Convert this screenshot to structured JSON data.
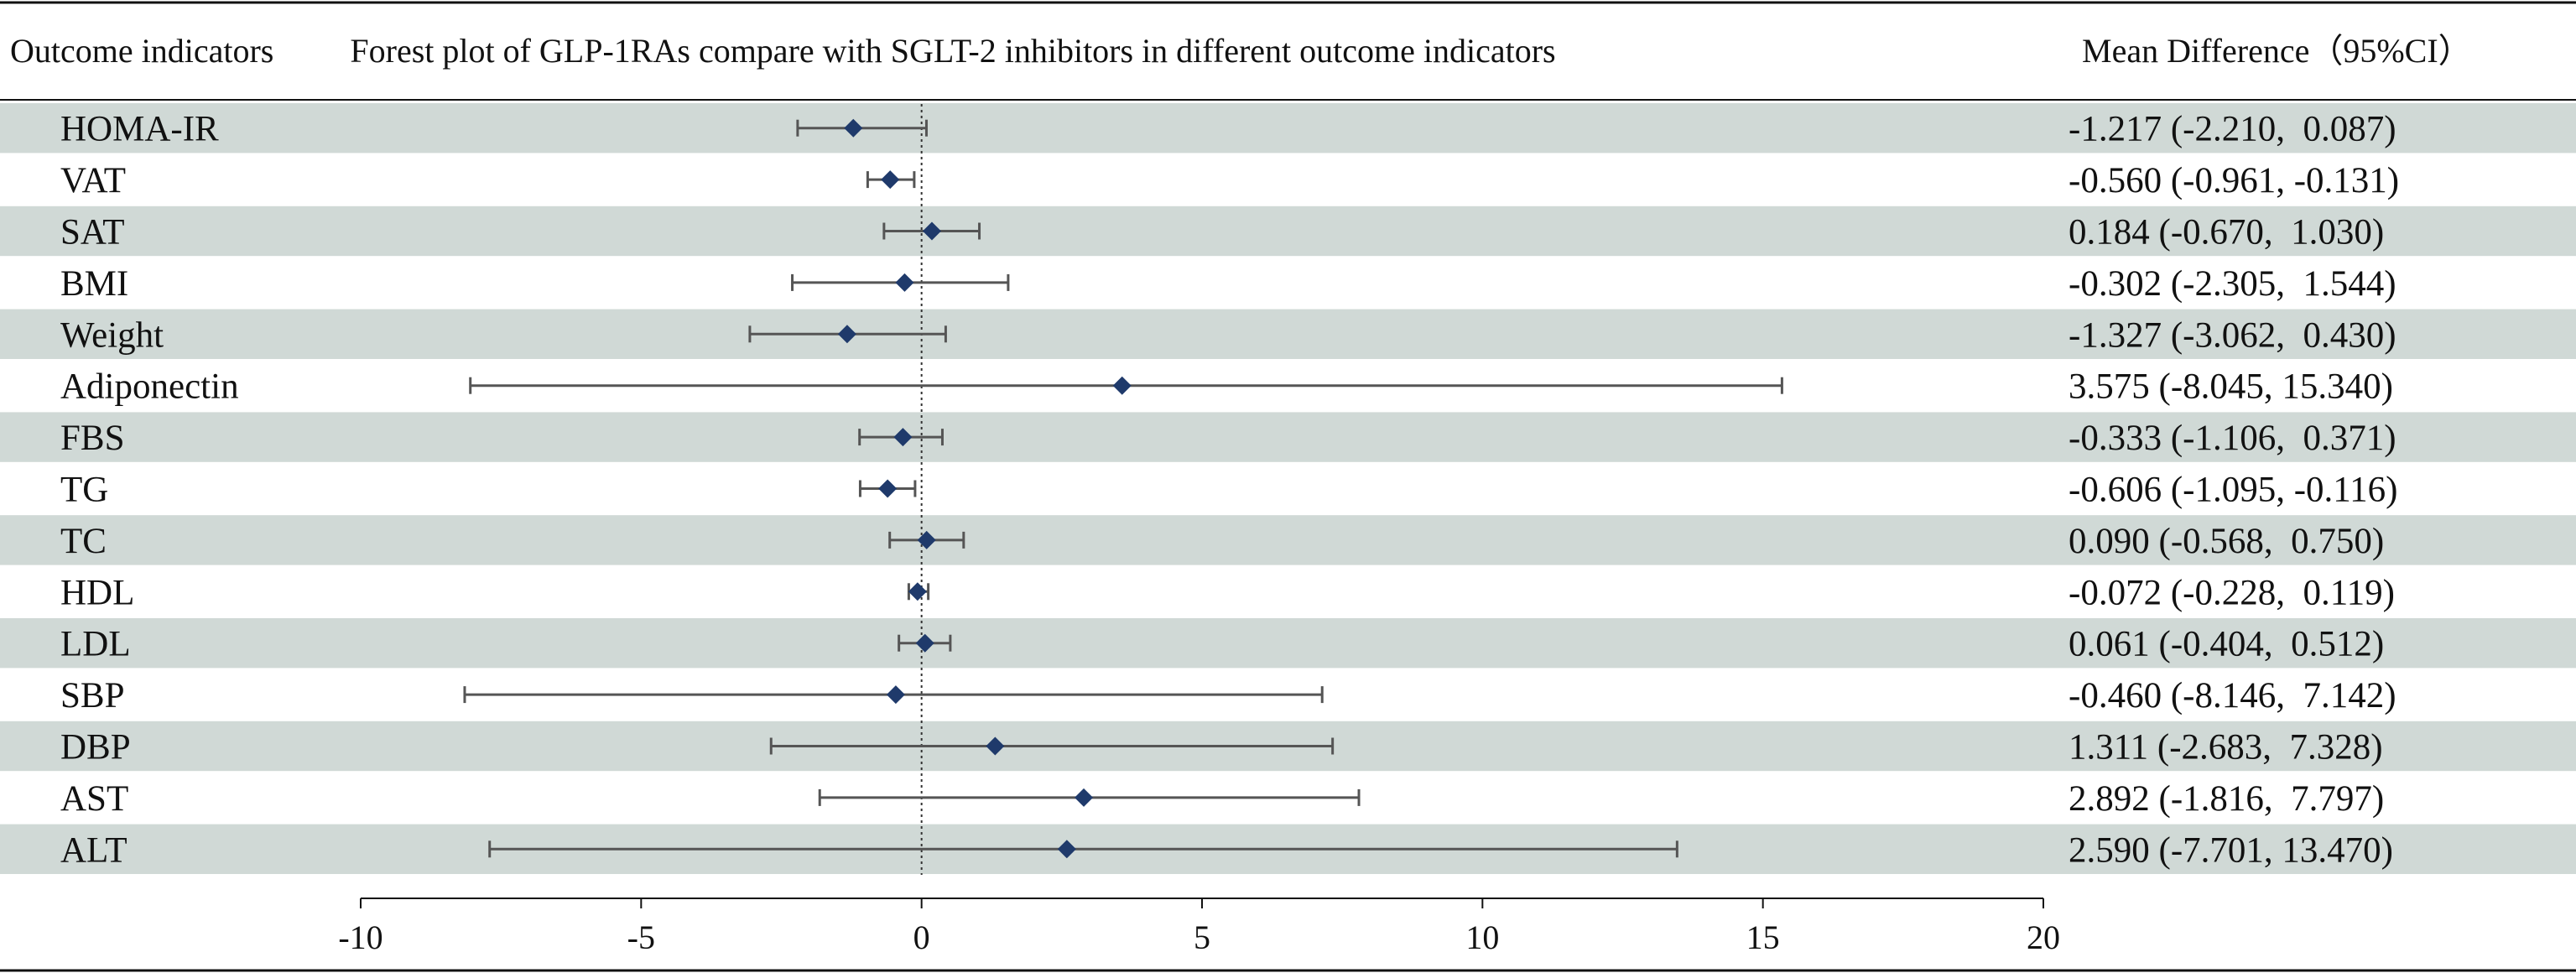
{
  "header": {
    "col_indicator": "Outcome indicators",
    "col_md": "Mean Difference（95%CI）"
  },
  "chart_data": {
    "type": "forest",
    "title": "Forest plot of GLP-1RAs compare with SGLT-2 inhibitors in different outcome indicators",
    "xlim": [
      -10,
      20
    ],
    "xticks": [
      -10,
      -5,
      0,
      5,
      10,
      15,
      20
    ],
    "reference_line": 0,
    "colors": {
      "marker": "#1f3a6b",
      "ci": "#555555",
      "stripe": "#d0d9d6"
    },
    "rows": [
      {
        "name": "HOMA-IR",
        "md": -1.217,
        "lo": -2.21,
        "hi": 0.087,
        "text": "-1.217 (-2.210,  0.087)"
      },
      {
        "name": "VAT",
        "md": -0.56,
        "lo": -0.961,
        "hi": -0.131,
        "text": "-0.560 (-0.961, -0.131)"
      },
      {
        "name": "SAT",
        "md": 0.184,
        "lo": -0.67,
        "hi": 1.03,
        "text": "0.184 (-0.670,  1.030)"
      },
      {
        "name": "BMI",
        "md": -0.302,
        "lo": -2.305,
        "hi": 1.544,
        "text": "-0.302 (-2.305,  1.544)"
      },
      {
        "name": "Weight",
        "md": -1.327,
        "lo": -3.062,
        "hi": 0.43,
        "text": "-1.327 (-3.062,  0.430)"
      },
      {
        "name": "Adiponectin",
        "md": 3.575,
        "lo": -8.045,
        "hi": 15.34,
        "text": "3.575 (-8.045, 15.340)"
      },
      {
        "name": "FBS",
        "md": -0.333,
        "lo": -1.106,
        "hi": 0.371,
        "text": "-0.333 (-1.106,  0.371)"
      },
      {
        "name": "TG",
        "md": -0.606,
        "lo": -1.095,
        "hi": -0.116,
        "text": "-0.606 (-1.095, -0.116)"
      },
      {
        "name": "TC",
        "md": 0.09,
        "lo": -0.568,
        "hi": 0.75,
        "text": "0.090 (-0.568,  0.750)"
      },
      {
        "name": "HDL",
        "md": -0.072,
        "lo": -0.228,
        "hi": 0.119,
        "text": "-0.072 (-0.228,  0.119)"
      },
      {
        "name": "LDL",
        "md": 0.061,
        "lo": -0.404,
        "hi": 0.512,
        "text": "0.061 (-0.404,  0.512)"
      },
      {
        "name": "SBP",
        "md": -0.46,
        "lo": -8.146,
        "hi": 7.142,
        "text": "-0.460 (-8.146,  7.142)"
      },
      {
        "name": "DBP",
        "md": 1.311,
        "lo": -2.683,
        "hi": 7.328,
        "text": "1.311 (-2.683,  7.328)"
      },
      {
        "name": "AST",
        "md": 2.892,
        "lo": -1.816,
        "hi": 7.797,
        "text": "2.892 (-1.816,  7.797)"
      },
      {
        "name": "ALT",
        "md": 2.59,
        "lo": -7.701,
        "hi": 13.47,
        "text": "2.590 (-7.701, 13.470)"
      }
    ]
  }
}
